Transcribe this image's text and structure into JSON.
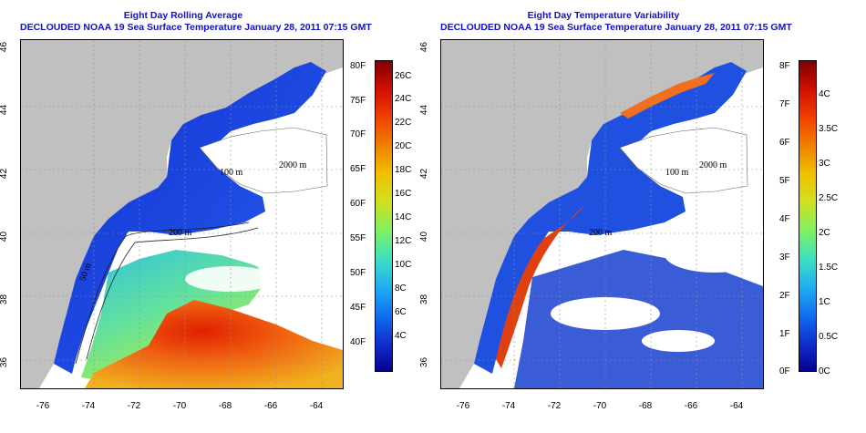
{
  "left_panel": {
    "title": "Eight Day Rolling Average",
    "subtitle": "DECLOUDED NOAA 19 Sea Surface Temperature January 28, 2011 07:15 GMT",
    "colorbar_f": [
      "80F",
      "75F",
      "70F",
      "65F",
      "60F",
      "55F",
      "50F",
      "45F",
      "40F"
    ],
    "colorbar_c": [
      "26C",
      "24C",
      "22C",
      "20C",
      "18C",
      "16C",
      "14C",
      "12C",
      "10C",
      "8C",
      "6C",
      "4C"
    ],
    "contour_labels": [
      "100 m",
      "2000 m",
      "200 m",
      "200 m",
      "50 m"
    ]
  },
  "right_panel": {
    "title": "Eight Day Temperature Variability",
    "subtitle": "DECLOUDED NOAA 19 Sea Surface Temperature January 28, 2011 07:15 GMT",
    "colorbar_f": [
      "8F",
      "7F",
      "6F",
      "5F",
      "4F",
      "3F",
      "2F",
      "1F",
      "0F"
    ],
    "colorbar_c": [
      "4C",
      "3.5C",
      "3C",
      "2.5C",
      "2C",
      "1.5C",
      "1C",
      "0.5C",
      "0C"
    ],
    "contour_labels": [
      "100 m",
      "2000 m",
      "200 m",
      "200 m",
      "50 m"
    ]
  },
  "axes": {
    "lon_ticks": [
      "-76",
      "-74",
      "-72",
      "-70",
      "-68",
      "-66",
      "-64"
    ],
    "lat_ticks": [
      "46",
      "44",
      "42",
      "40",
      "38",
      "36"
    ]
  },
  "colors": {
    "title": "#1010c8",
    "land": "#c0c0c0",
    "water_no_data": "#ffffff"
  }
}
